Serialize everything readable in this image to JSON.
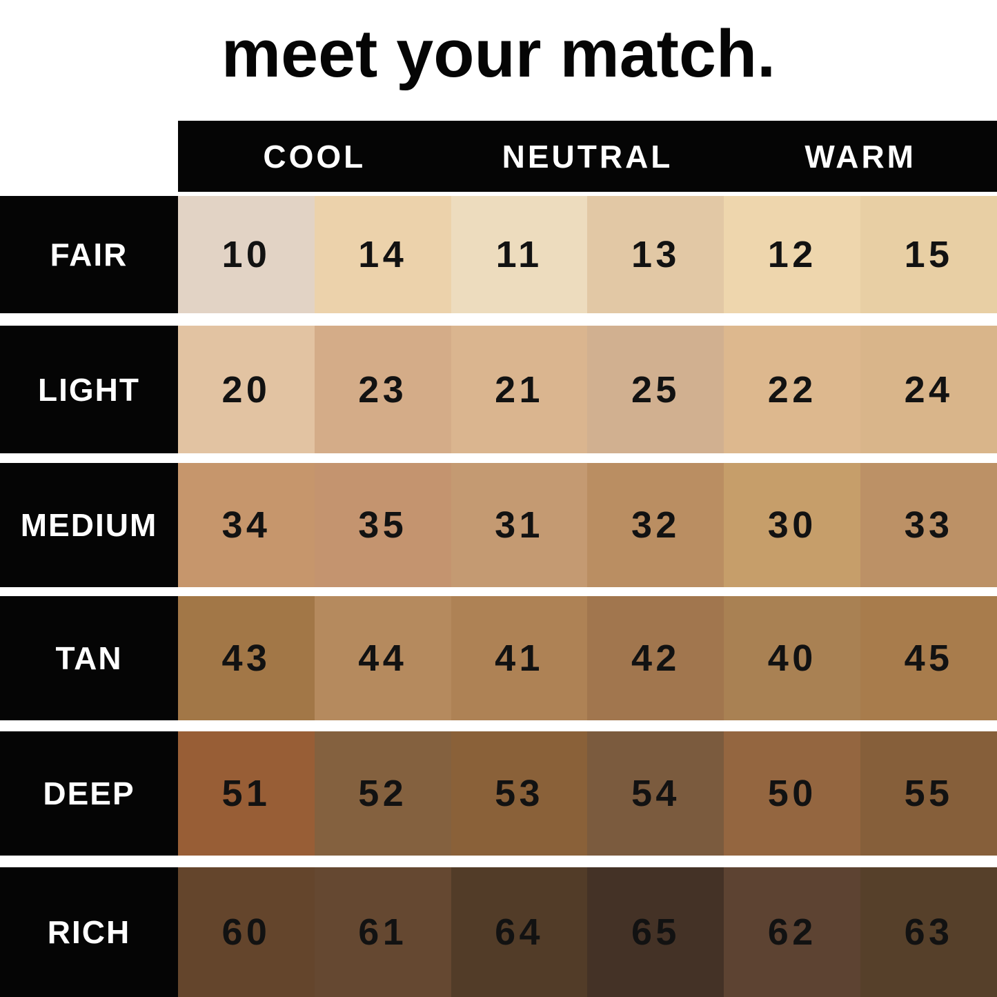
{
  "chart_data": {
    "type": "table",
    "title": "meet your match.",
    "undertone_headers": [
      "COOL",
      "NEUTRAL",
      "WARM"
    ],
    "column_groups": [
      "COOL",
      "COOL",
      "NEUTRAL",
      "NEUTRAL",
      "WARM",
      "WARM"
    ],
    "colors": {
      "header_bg": "#050505",
      "header_text": "#ffffff",
      "number_text": "#121212",
      "background": "#ffffff"
    },
    "rows": [
      {
        "label": "FAIR",
        "swatches": [
          {
            "shade": "10",
            "color": "#e2d3c5"
          },
          {
            "shade": "14",
            "color": "#ecd2ab"
          },
          {
            "shade": "11",
            "color": "#eddcbe"
          },
          {
            "shade": "13",
            "color": "#e2c8a5"
          },
          {
            "shade": "12",
            "color": "#eed6ad"
          },
          {
            "shade": "15",
            "color": "#e8cfa4"
          }
        ]
      },
      {
        "label": "LIGHT",
        "swatches": [
          {
            "shade": "20",
            "color": "#e2c3a2"
          },
          {
            "shade": "23",
            "color": "#d4ac88"
          },
          {
            "shade": "21",
            "color": "#dab58f"
          },
          {
            "shade": "25",
            "color": "#d1b090"
          },
          {
            "shade": "22",
            "color": "#ddb88e"
          },
          {
            "shade": "24",
            "color": "#d9b58a"
          }
        ]
      },
      {
        "label": "MEDIUM",
        "swatches": [
          {
            "shade": "34",
            "color": "#c6966c"
          },
          {
            "shade": "35",
            "color": "#c4946f"
          },
          {
            "shade": "31",
            "color": "#c49a72"
          },
          {
            "shade": "32",
            "color": "#ba8e62"
          },
          {
            "shade": "30",
            "color": "#c69e6a"
          },
          {
            "shade": "33",
            "color": "#bc9166"
          }
        ]
      },
      {
        "label": "TAN",
        "swatches": [
          {
            "shade": "43",
            "color": "#a27747"
          },
          {
            "shade": "44",
            "color": "#b58a5e"
          },
          {
            "shade": "41",
            "color": "#ae8255"
          },
          {
            "shade": "42",
            "color": "#a1764e"
          },
          {
            "shade": "40",
            "color": "#a98153"
          },
          {
            "shade": "45",
            "color": "#a87c4c"
          }
        ]
      },
      {
        "label": "DEEP",
        "swatches": [
          {
            "shade": "51",
            "color": "#985e36"
          },
          {
            "shade": "52",
            "color": "#84613f"
          },
          {
            "shade": "53",
            "color": "#8a6139"
          },
          {
            "shade": "54",
            "color": "#7b5b3e"
          },
          {
            "shade": "50",
            "color": "#946640"
          },
          {
            "shade": "55",
            "color": "#865f3a"
          }
        ]
      },
      {
        "label": "RICH",
        "swatches": [
          {
            "shade": "60",
            "color": "#64452c"
          },
          {
            "shade": "61",
            "color": "#654831"
          },
          {
            "shade": "64",
            "color": "#523c28"
          },
          {
            "shade": "65",
            "color": "#443226"
          },
          {
            "shade": "62",
            "color": "#5d4332"
          },
          {
            "shade": "63",
            "color": "#56402a"
          }
        ]
      }
    ]
  }
}
